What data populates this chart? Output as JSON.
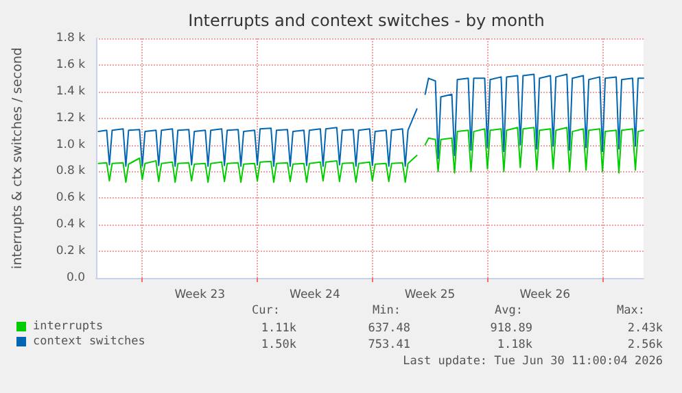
{
  "chart_data": {
    "type": "line",
    "title": "Interrupts and context switches - by month",
    "ylabel": "interrupts & ctx switches / second",
    "x": [
      "2026-05-29T08:00",
      "2026-05-29T20:00",
      "2026-05-30T00:00",
      "2026-05-30T04:00",
      "2026-05-30T20:00",
      "2026-05-31T00:00",
      "2026-05-31T04:00",
      "2026-05-31T20:00",
      "2026-06-01T00:00",
      "2026-06-01T04:00",
      "2026-06-01T20:00",
      "2026-06-02T00:00",
      "2026-06-02T04:00",
      "2026-06-02T20:00",
      "2026-06-03T00:00",
      "2026-06-03T04:00",
      "2026-06-03T20:00",
      "2026-06-04T00:00",
      "2026-06-04T04:00",
      "2026-06-04T20:00",
      "2026-06-05T00:00",
      "2026-06-05T04:00",
      "2026-06-05T20:00",
      "2026-06-06T00:00",
      "2026-06-06T04:00",
      "2026-06-06T20:00",
      "2026-06-07T00:00",
      "2026-06-07T04:00",
      "2026-06-07T20:00",
      "2026-06-08T00:00",
      "2026-06-08T04:00",
      "2026-06-08T20:00",
      "2026-06-09T00:00",
      "2026-06-09T04:00",
      "2026-06-09T20:00",
      "2026-06-10T00:00",
      "2026-06-10T04:00",
      "2026-06-10T20:00",
      "2026-06-11T00:00",
      "2026-06-11T04:00",
      "2026-06-11T20:00",
      "2026-06-12T00:00",
      "2026-06-12T04:00",
      "2026-06-12T20:00",
      "2026-06-13T00:00",
      "2026-06-13T04:00",
      "2026-06-13T20:00",
      "2026-06-14T00:00",
      "2026-06-14T04:00",
      "2026-06-14T20:00",
      "2026-06-15T00:00",
      "2026-06-15T04:00",
      "2026-06-15T20:00",
      "2026-06-16T00:00",
      "2026-06-16T04:00",
      "2026-06-16T20:00",
      "2026-06-17T00:00",
      "2026-06-17T04:00",
      "2026-06-17T17:00",
      "2026-06-18T00:00",
      "2026-06-18T05:00",
      "2026-06-18T10:00",
      "2026-06-18T20:00",
      "2026-06-19T00:00",
      "2026-06-19T04:00",
      "2026-06-19T20:00",
      "2026-06-20T00:00",
      "2026-06-20T04:00",
      "2026-06-20T20:00",
      "2026-06-21T00:00",
      "2026-06-21T04:00",
      "2026-06-21T20:00",
      "2026-06-22T00:00",
      "2026-06-22T04:00",
      "2026-06-22T20:00",
      "2026-06-23T00:00",
      "2026-06-23T04:00",
      "2026-06-23T20:00",
      "2026-06-24T00:00",
      "2026-06-24T04:00",
      "2026-06-24T20:00",
      "2026-06-25T00:00",
      "2026-06-25T04:00",
      "2026-06-25T20:00",
      "2026-06-26T00:00",
      "2026-06-26T04:00",
      "2026-06-26T20:00",
      "2026-06-27T00:00",
      "2026-06-27T04:00",
      "2026-06-27T20:00",
      "2026-06-28T00:00",
      "2026-06-28T04:00",
      "2026-06-28T20:00",
      "2026-06-29T00:00",
      "2026-06-29T04:00",
      "2026-06-29T20:00",
      "2026-06-30T00:00",
      "2026-06-30T04:00",
      "2026-06-30T20:00",
      "2026-07-01T00:00",
      "2026-07-01T04:00",
      "2026-07-01T12:00"
    ],
    "series": [
      {
        "name": "interrupts",
        "color": "#00cc00",
        "values": [
          860,
          865,
          730,
          860,
          865,
          720,
          855,
          900,
          740,
          860,
          880,
          725,
          860,
          870,
          720,
          860,
          865,
          730,
          855,
          860,
          720,
          860,
          870,
          725,
          860,
          865,
          720,
          855,
          860,
          730,
          870,
          875,
          720,
          860,
          865,
          725,
          855,
          860,
          720,
          860,
          870,
          730,
          870,
          880,
          725,
          860,
          865,
          720,
          860,
          870,
          730,
          855,
          860,
          725,
          860,
          865,
          720,
          860,
          920,
          null,
          1000,
          1050,
          1040,
          800,
          1040,
          1050,
          790,
          1100,
          1110,
          800,
          1100,
          1120,
          820,
          1110,
          1120,
          800,
          1110,
          1130,
          830,
          1120,
          1130,
          810,
          1110,
          1120,
          820,
          1110,
          1130,
          800,
          1100,
          1120,
          810,
          1110,
          1120,
          800,
          1100,
          1110,
          790,
          1110,
          1120,
          810,
          1100,
          1110
        ]
      },
      {
        "name": "context switches",
        "color": "#0066b3",
        "values": [
          1100,
          1110,
          850,
          1110,
          1120,
          840,
          1110,
          1115,
          840,
          1100,
          1110,
          845,
          1110,
          1120,
          840,
          1110,
          1115,
          850,
          1100,
          1110,
          840,
          1110,
          1120,
          845,
          1110,
          1115,
          840,
          1100,
          1110,
          850,
          1120,
          1125,
          840,
          1110,
          1115,
          840,
          1100,
          1110,
          845,
          1110,
          1120,
          840,
          1120,
          1130,
          850,
          1110,
          1115,
          840,
          1110,
          1120,
          845,
          1100,
          1110,
          840,
          1110,
          1120,
          840,
          1110,
          1270,
          null,
          1380,
          1500,
          1480,
          900,
          1360,
          1380,
          920,
          1490,
          1500,
          960,
          1500,
          1500,
          980,
          1490,
          1510,
          950,
          1510,
          1520,
          1000,
          1520,
          1530,
          970,
          1500,
          1520,
          990,
          1510,
          1530,
          960,
          1500,
          1520,
          980,
          1490,
          1510,
          950,
          1500,
          1510,
          970,
          1490,
          1500,
          990,
          1500,
          1500
        ]
      }
    ],
    "xlim": [
      "2026-05-29T04:30",
      "2026-07-01T12:00"
    ],
    "xticks": [
      {
        "value": "2026-06-01T00:00",
        "label": null
      },
      {
        "value": "2026-06-04T12:00",
        "label": "Week 23"
      },
      {
        "value": "2026-06-08T00:00",
        "label": null
      },
      {
        "value": "2026-06-11T12:00",
        "label": "Week 24"
      },
      {
        "value": "2026-06-15T00:00",
        "label": null
      },
      {
        "value": "2026-06-18T12:00",
        "label": "Week 25"
      },
      {
        "value": "2026-06-22T00:00",
        "label": null
      },
      {
        "value": "2026-06-25T12:00",
        "label": "Week 26"
      },
      {
        "value": "2026-06-29T00:00",
        "label": null
      }
    ],
    "ylim": [
      0,
      1800
    ],
    "yticks": [
      {
        "value": 0,
        "label": "0.0"
      },
      {
        "value": 200,
        "label": "0.2 k"
      },
      {
        "value": 400,
        "label": "0.4 k"
      },
      {
        "value": 600,
        "label": "0.6 k"
      },
      {
        "value": 800,
        "label": "0.8 k"
      },
      {
        "value": 1000,
        "label": "1.0 k"
      },
      {
        "value": 1200,
        "label": "1.2 k"
      },
      {
        "value": 1400,
        "label": "1.4 k"
      },
      {
        "value": 1600,
        "label": "1.6 k"
      },
      {
        "value": 1800,
        "label": "1.8 k"
      }
    ],
    "grid": true,
    "legend": "bottom left",
    "marker": "none",
    "line_style": "solid",
    "annotations": [
      "Cur:",
      "Min:",
      "Avg:",
      "Max:",
      "1.11k",
      "637.48",
      "918.89",
      "2.43k",
      "1.50k",
      "753.41",
      "1.18k",
      "2.56k",
      "Last update: Tue Jun 30 11:00:04 2026"
    ]
  }
}
